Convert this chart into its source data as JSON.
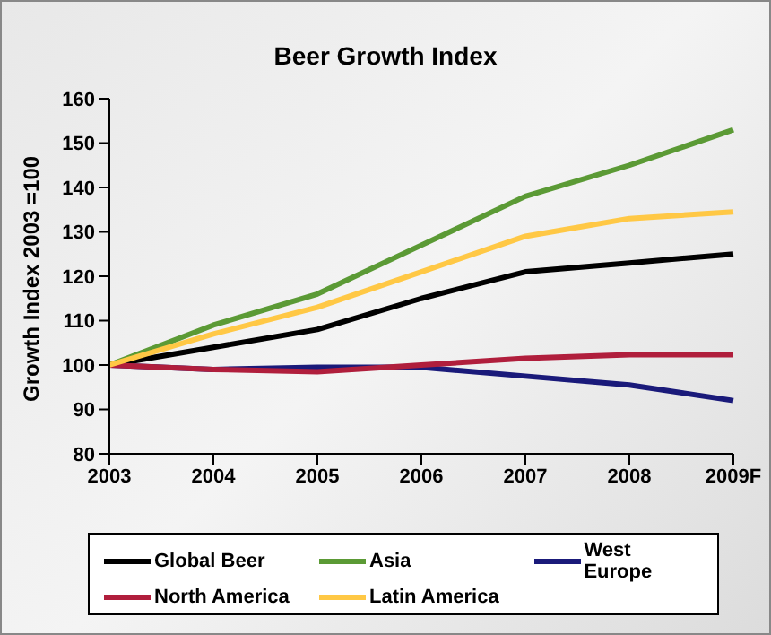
{
  "chart_data": {
    "type": "line",
    "title": "Beer Growth Index",
    "ylabel": "Growth Index 2003 =100",
    "categories": [
      "2003",
      "2004",
      "2005",
      "2006",
      "2007",
      "2008",
      "2009F"
    ],
    "series": [
      {
        "name": "Global Beer",
        "color": "#000000",
        "values": [
          100,
          104,
          108,
          115,
          121,
          123,
          125
        ]
      },
      {
        "name": "Asia",
        "color": "#5b9a35",
        "values": [
          100,
          109,
          116,
          127,
          138,
          145,
          153
        ]
      },
      {
        "name": "West Europe",
        "color": "#1a1a7a",
        "values": [
          100,
          99,
          99.5,
          99.5,
          97.5,
          95.5,
          92
        ]
      },
      {
        "name": "North America",
        "color": "#b01e3c",
        "values": [
          100,
          99,
          98.5,
          100,
          101.5,
          102.3,
          102.3
        ]
      },
      {
        "name": "Latin America",
        "color": "#ffc845",
        "values": [
          100,
          107,
          113,
          121,
          129,
          133,
          134.5
        ]
      }
    ],
    "ylim": [
      80,
      160
    ],
    "yticks": [
      80,
      90,
      100,
      110,
      120,
      130,
      140,
      150,
      160
    ],
    "grid": false,
    "legend": "bottom",
    "marker": "none",
    "line_style": "solid"
  }
}
